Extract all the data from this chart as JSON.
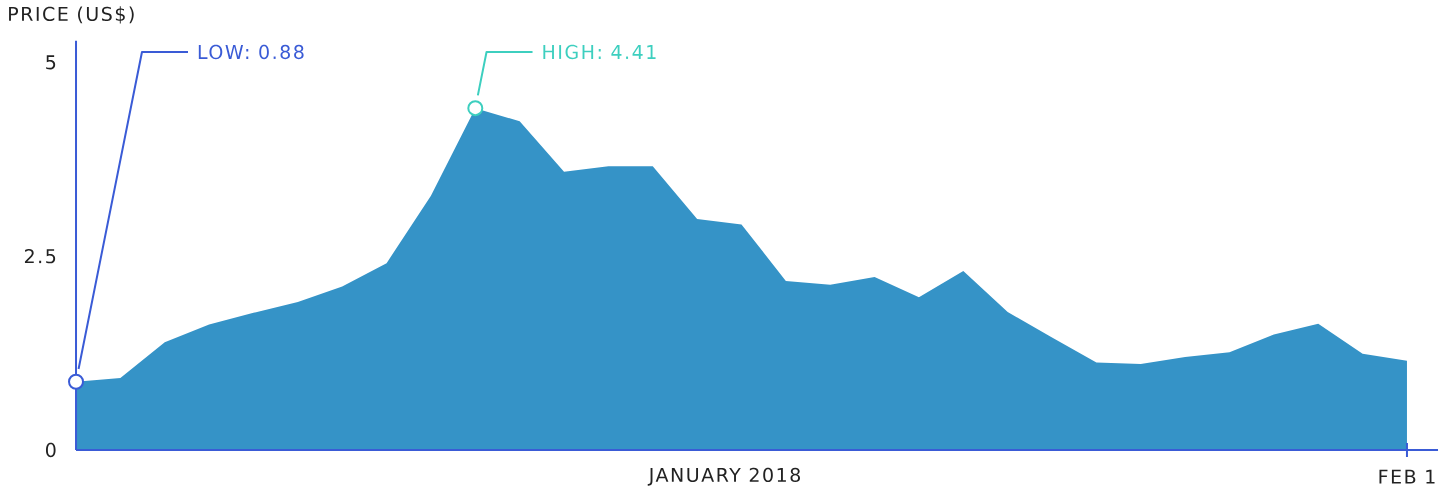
{
  "chart_data": {
    "type": "area",
    "ylabel": "PRICE (US$)",
    "xlabel": "JANUARY 2018",
    "categories": [
      null,
      null,
      null,
      null,
      null,
      null,
      null,
      null,
      null,
      null,
      null,
      null,
      null,
      null,
      null,
      null,
      null,
      null,
      null,
      null,
      null,
      null,
      null,
      null,
      null,
      null,
      null,
      null,
      null,
      null,
      null
    ],
    "series": [
      {
        "color": "#3593c7",
        "values": [
          0.88,
          0.93,
          1.39,
          1.62,
          1.77,
          1.91,
          2.11,
          2.41,
          3.28,
          4.41,
          4.24,
          3.59,
          3.66,
          3.66,
          2.98,
          2.91,
          2.18,
          2.13,
          2.23,
          1.97,
          2.31,
          1.78,
          1.45,
          1.13,
          1.11,
          1.2,
          1.26,
          1.49,
          1.63,
          1.24,
          1.15
        ]
      }
    ],
    "ylim": [
      0,
      5.28
    ],
    "yticks": [
      0,
      2.5,
      5
    ],
    "annotations": [
      "LOW: 0.88",
      "HIGH: 4.41",
      "FEB 1"
    ]
  }
}
